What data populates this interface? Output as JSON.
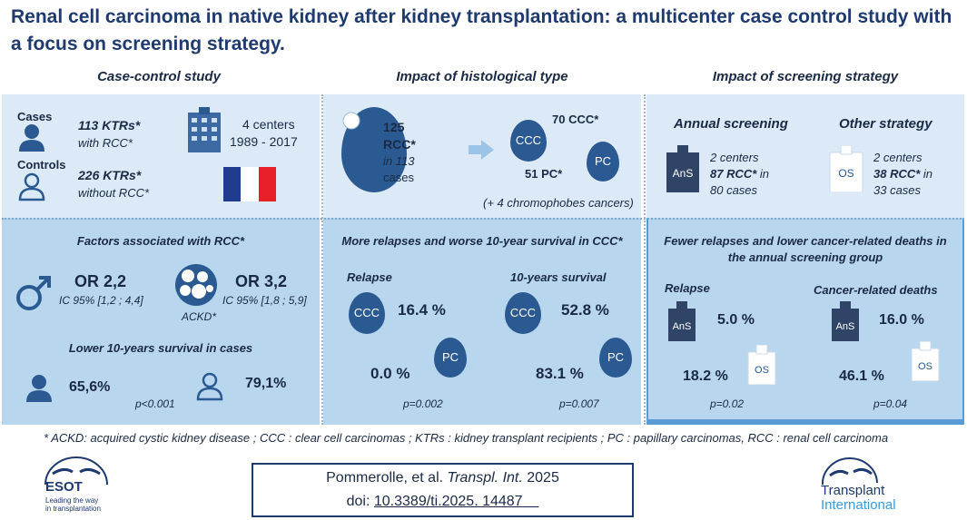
{
  "title": "Renal cell carcinoma in native kidney after kidney transplantation: a multicenter case control study with a focus on screening strategy.",
  "columns": {
    "case_control": {
      "heading": "Case-control study",
      "cases_label": "Cases",
      "cases_count": "113 KTRs*",
      "cases_desc": "with RCC*",
      "controls_label": "Controls",
      "controls_count": "226 KTRs*",
      "controls_desc": "without RCC*",
      "centers": "4 centers",
      "years": "1989 - 2017",
      "factors_heading": "Factors associated with RCC*",
      "or1": "OR 2,2",
      "ci1": "IC 95% [1,2 ; 4,4]",
      "or2": "OR 3,2",
      "ci2": "IC 95% [1,8 ; 5,9]",
      "ackd": "ACKD*",
      "survival_heading": "Lower 10-years survival in cases",
      "survival_cases": "65,6%",
      "survival_controls": "79,1%",
      "pvalue": "p<0.001"
    },
    "histology": {
      "heading": "Impact of histological type",
      "total_count": "125",
      "total_label": "RCC*",
      "total_in": "in 113",
      "total_cases": "cases",
      "ccc_count": "70 CCC*",
      "pc_count": "51 PC*",
      "chromophobe": "(+ 4 chromophobes cancers)",
      "relapse_heading": "More relapses and worse 10-year survival in CCC*",
      "relapse_label": "Relapse",
      "survival_label": "10-years survival",
      "ccc_relapse": "16.4 %",
      "pc_relapse": "0.0 %",
      "ccc_survival": "52.8 %",
      "pc_survival": "83.1 %",
      "p_relapse": "p=0.002",
      "p_survival": "p=0.007",
      "ccc_icon": "CCC",
      "pc_icon": "PC"
    },
    "screening": {
      "heading": "Impact of screening strategy",
      "annual_label": "Annual screening",
      "other_label": "Other strategy",
      "annual_centers": "2 centers",
      "annual_rcc": "87 RCC*",
      "annual_in": " in",
      "annual_cases": "80 cases",
      "other_centers": "2 centers",
      "other_rcc": "38 RCC*",
      "other_in": " in",
      "other_cases": "33 cases",
      "result_heading_1": "Fewer relapses and lower cancer-related deaths in",
      "result_heading_2": "the annual screening group",
      "relapse_label": "Relapse",
      "deaths_label": "Cancer-related deaths",
      "ans_relapse": "5.0 %",
      "os_relapse": "18.2 %",
      "ans_deaths": "16.0 %",
      "os_deaths": "46.1 %",
      "p_relapse": "p=0.02",
      "p_deaths": "p=0.04",
      "ans_icon": "AnS",
      "os_icon": "OS"
    }
  },
  "footnote": "* ACKD: acquired cystic kidney disease ; CCC : clear cell carcinomas ; KTRs : kidney transplant recipients ; PC : papillary carcinomas, RCC : renal cell carcinoma",
  "citation": {
    "authors": "Pommerolle, et al. ",
    "journal": "Transpl. Int.",
    "year": " 2025",
    "doi_label": "doi: ",
    "doi": "10.3389/ti.2025. 14487"
  },
  "logos": {
    "esot_name": "ESOT",
    "esot_tagline_1": "Leading the way",
    "esot_tagline_2": "in transplantation",
    "ti_line1": "Transplant",
    "ti_line2": "International"
  },
  "colors": {
    "title": "#1e3a6e",
    "panel_light": "#dbeaf6",
    "panel_mid": "#b8d6ee",
    "kidney": "#2b5a93",
    "flag_blue": "#1f3c8f",
    "flag_red": "#e8202a"
  }
}
